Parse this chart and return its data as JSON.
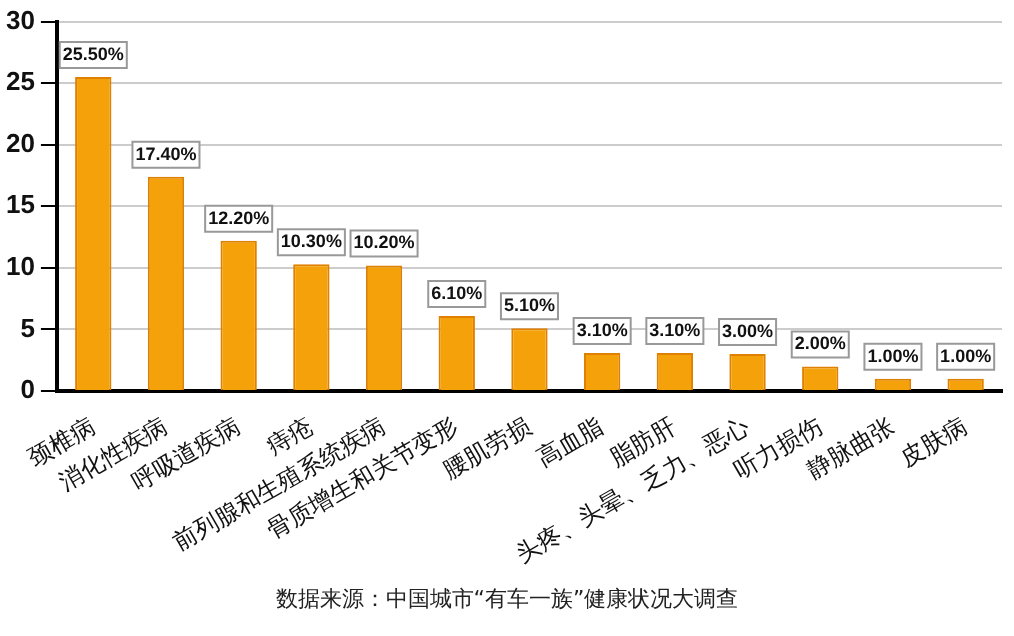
{
  "chart_data": {
    "type": "bar",
    "categories": [
      "颈椎病",
      "消化性疾病",
      "呼吸道疾病",
      "痔疮",
      "前列腺和生殖系统疾病",
      "骨质增生和关节变形",
      "腰肌劳损",
      "高血脂",
      "脂肪肝",
      "头疼、头晕、乏力、恶心",
      "听力损伤",
      "静脉曲张",
      "皮肤病"
    ],
    "values": [
      25.5,
      17.4,
      12.2,
      10.3,
      10.2,
      6.1,
      5.1,
      3.1,
      3.1,
      3.0,
      2.0,
      1.0,
      1.0
    ],
    "value_labels": [
      "25.50%",
      "17.40%",
      "12.20%",
      "10.30%",
      "10.20%",
      "6.10%",
      "5.10%",
      "3.10%",
      "3.10%",
      "3.00%",
      "2.00%",
      "1.00%",
      "1.00%"
    ],
    "color": "#f5a20a",
    "ylim": [
      0,
      30
    ],
    "yticks": [
      0,
      5,
      10,
      15,
      20,
      25,
      30
    ],
    "grid": "y",
    "annotations": [
      "数据来源：中国城市“有车一族”健康状况大调查"
    ]
  }
}
